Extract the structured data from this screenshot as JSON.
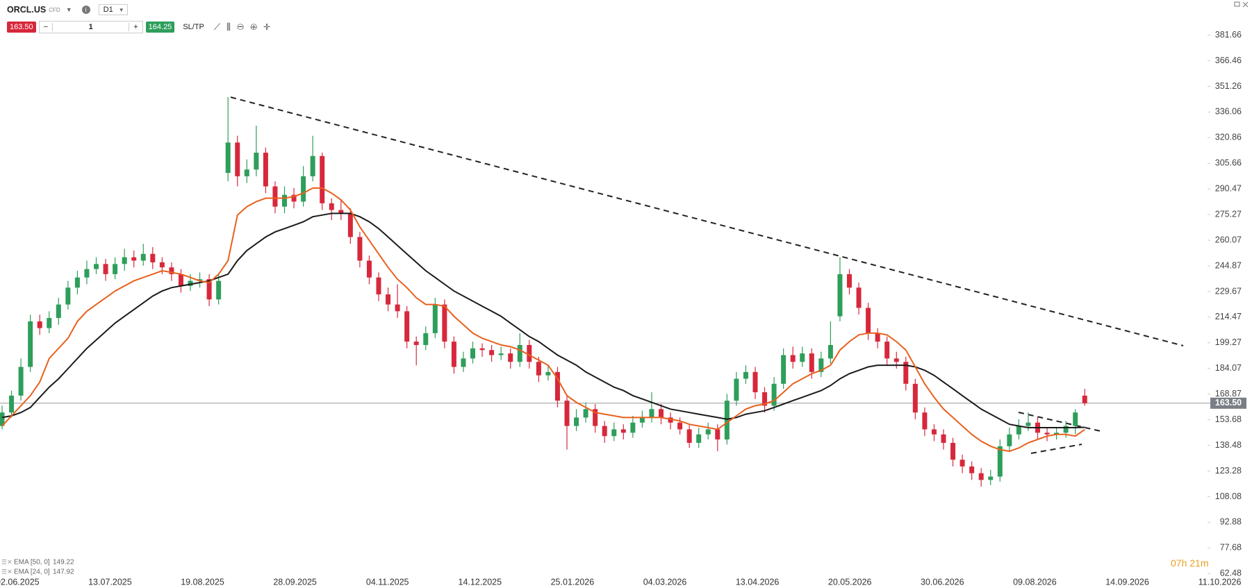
{
  "toolbar": {
    "symbol": "ORCL.US",
    "kind": "CFD",
    "timeframe": "D1",
    "sell_price": "163.50",
    "quantity": "1",
    "buy_price": "164.25",
    "sltp": "SL/TP"
  },
  "timer": "07h 21m",
  "chart_data": {
    "type": "candlestick",
    "up_color": "#2e9e5b",
    "down_color": "#d7283b",
    "ylim": [
      62.48,
      381.66
    ],
    "yticks": [
      381.66,
      366.46,
      351.26,
      336.06,
      320.86,
      305.66,
      290.47,
      275.27,
      260.07,
      244.87,
      229.67,
      214.47,
      199.27,
      184.07,
      168.87,
      153.68,
      138.48,
      123.28,
      108.08,
      92.88,
      77.68,
      62.48
    ],
    "grid": false,
    "x_labels": [
      "02.06.2025",
      "13.07.2025",
      "19.08.2025",
      "28.09.2025",
      "04.11.2025",
      "14.12.2025",
      "25.01.2026",
      "04.03.2026",
      "13.04.2026",
      "20.05.2026",
      "30.06.2026",
      "09.08.2026",
      "14.09.2026",
      "11.10.2026"
    ],
    "last_price": {
      "value": 163.5,
      "label": "163.50"
    },
    "ohlc": [
      [
        150,
        162,
        148,
        158
      ],
      [
        158,
        171,
        155,
        168
      ],
      [
        168,
        190,
        165,
        185
      ],
      [
        185,
        216,
        182,
        212
      ],
      [
        212,
        216,
        204,
        208
      ],
      [
        208,
        218,
        205,
        214
      ],
      [
        214,
        226,
        210,
        222
      ],
      [
        222,
        236,
        219,
        232
      ],
      [
        232,
        242,
        228,
        238
      ],
      [
        238,
        248,
        234,
        243
      ],
      [
        243,
        250,
        240,
        246
      ],
      [
        246,
        249,
        236,
        240
      ],
      [
        240,
        250,
        237,
        246
      ],
      [
        246,
        255,
        242,
        250
      ],
      [
        250,
        254,
        244,
        248
      ],
      [
        248,
        258,
        245,
        252
      ],
      [
        252,
        256,
        243,
        247
      ],
      [
        247,
        250,
        240,
        244
      ],
      [
        244,
        247,
        236,
        240
      ],
      [
        240,
        243,
        229,
        233
      ],
      [
        233,
        240,
        230,
        236
      ],
      [
        236,
        241,
        232,
        237
      ],
      [
        237,
        240,
        221,
        225
      ],
      [
        225,
        240,
        222,
        236
      ],
      [
        300,
        345,
        295,
        318
      ],
      [
        318,
        322,
        292,
        298
      ],
      [
        298,
        308,
        294,
        302
      ],
      [
        302,
        328,
        298,
        312
      ],
      [
        312,
        315,
        288,
        292
      ],
      [
        292,
        295,
        276,
        280
      ],
      [
        280,
        292,
        276,
        287
      ],
      [
        287,
        291,
        279,
        283
      ],
      [
        283,
        304,
        280,
        298
      ],
      [
        298,
        322,
        295,
        310
      ],
      [
        310,
        312,
        278,
        282
      ],
      [
        282,
        285,
        272,
        278
      ],
      [
        278,
        284,
        272,
        276
      ],
      [
        276,
        279,
        258,
        262
      ],
      [
        262,
        265,
        244,
        248
      ],
      [
        248,
        251,
        234,
        238
      ],
      [
        238,
        241,
        224,
        228
      ],
      [
        228,
        232,
        218,
        222
      ],
      [
        222,
        234,
        214,
        218
      ],
      [
        218,
        221,
        196,
        200
      ],
      [
        200,
        203,
        186,
        198
      ],
      [
        198,
        209,
        195,
        205
      ],
      [
        205,
        226,
        202,
        222
      ],
      [
        222,
        225,
        196,
        200
      ],
      [
        200,
        203,
        181,
        185
      ],
      [
        185,
        194,
        182,
        190
      ],
      [
        190,
        200,
        187,
        196
      ],
      [
        196,
        199,
        191,
        195
      ],
      [
        195,
        198,
        188,
        192
      ],
      [
        192,
        197,
        189,
        193
      ],
      [
        193,
        196,
        184,
        188
      ],
      [
        188,
        205,
        185,
        198
      ],
      [
        198,
        201,
        184,
        188
      ],
      [
        188,
        191,
        176,
        180
      ],
      [
        180,
        186,
        177,
        182
      ],
      [
        182,
        185,
        161,
        165
      ],
      [
        165,
        168,
        136,
        150
      ],
      [
        150,
        160,
        147,
        155
      ],
      [
        155,
        164,
        152,
        160
      ],
      [
        160,
        163,
        146,
        150
      ],
      [
        150,
        153,
        140,
        144
      ],
      [
        144,
        152,
        141,
        148
      ],
      [
        148,
        151,
        142,
        146
      ],
      [
        146,
        156,
        143,
        152
      ],
      [
        152,
        159,
        149,
        155
      ],
      [
        155,
        170,
        152,
        160
      ],
      [
        160,
        163,
        151,
        155
      ],
      [
        155,
        158,
        148,
        152
      ],
      [
        152,
        155,
        145,
        148
      ],
      [
        148,
        151,
        137,
        140
      ],
      [
        140,
        149,
        137,
        145
      ],
      [
        145,
        152,
        142,
        148
      ],
      [
        148,
        151,
        135,
        142
      ],
      [
        142,
        169,
        139,
        165
      ],
      [
        165,
        182,
        162,
        178
      ],
      [
        178,
        186,
        175,
        182
      ],
      [
        182,
        185,
        166,
        170
      ],
      [
        170,
        173,
        158,
        162
      ],
      [
        162,
        179,
        159,
        175
      ],
      [
        175,
        196,
        172,
        192
      ],
      [
        192,
        197,
        184,
        188
      ],
      [
        188,
        197,
        185,
        193
      ],
      [
        193,
        196,
        178,
        182
      ],
      [
        182,
        194,
        179,
        190
      ],
      [
        190,
        212,
        187,
        198
      ],
      [
        215,
        250,
        212,
        240
      ],
      [
        240,
        243,
        228,
        232
      ],
      [
        232,
        235,
        216,
        220
      ],
      [
        220,
        223,
        201,
        205
      ],
      [
        205,
        208,
        196,
        200
      ],
      [
        200,
        203,
        186,
        190
      ],
      [
        190,
        194,
        184,
        188
      ],
      [
        188,
        191,
        171,
        175
      ],
      [
        175,
        178,
        154,
        158
      ],
      [
        158,
        161,
        144,
        148
      ],
      [
        148,
        151,
        141,
        145
      ],
      [
        145,
        148,
        136,
        140
      ],
      [
        140,
        143,
        126,
        130
      ],
      [
        130,
        133,
        122,
        126
      ],
      [
        126,
        129,
        118,
        122
      ],
      [
        122,
        125,
        114,
        118
      ],
      [
        118,
        124,
        115,
        120
      ],
      [
        120,
        142,
        117,
        138
      ],
      [
        138,
        149,
        135,
        145
      ],
      [
        145,
        154,
        142,
        150
      ],
      [
        150,
        158,
        147,
        152
      ],
      [
        152,
        155,
        142,
        146
      ],
      [
        146,
        149,
        141,
        145
      ],
      [
        145,
        149,
        142,
        146
      ],
      [
        146,
        153,
        143,
        150
      ],
      [
        150,
        160,
        145,
        158
      ],
      [
        168,
        172,
        162,
        163.5
      ]
    ],
    "series": [
      {
        "name": "EMA [50, 0]",
        "color": "#1a1a1a",
        "values": [
          155,
          156,
          158,
          161,
          167,
          173,
          178,
          184,
          190,
          196,
          201,
          206,
          211,
          215,
          219,
          223,
          227,
          230,
          232,
          233,
          234,
          235,
          236,
          238,
          240,
          248,
          254,
          258,
          262,
          265,
          267,
          269,
          271,
          274,
          275,
          276,
          276,
          276,
          274,
          271,
          267,
          262,
          257,
          252,
          247,
          242,
          238,
          234,
          230,
          227,
          224,
          221,
          218,
          215,
          211,
          207,
          203,
          200,
          196,
          192,
          189,
          186,
          182,
          179,
          176,
          173,
          171,
          168,
          166,
          164,
          162,
          160,
          159,
          158,
          157,
          156,
          155,
          154,
          155,
          157,
          158,
          159,
          161,
          163,
          165,
          167,
          169,
          171,
          174,
          178,
          181,
          183,
          185,
          186,
          186,
          186,
          186,
          185,
          183,
          180,
          176,
          172,
          168,
          164,
          160,
          157,
          154,
          151,
          150,
          149,
          149,
          149,
          149,
          149,
          149,
          149.22
        ]
      },
      {
        "name": "EMA [24, 0]",
        "color": "#e8601c",
        "values": [
          150,
          156,
          162,
          168,
          176,
          190,
          196,
          202,
          212,
          218,
          222,
          226,
          230,
          233,
          236,
          238,
          240,
          242,
          241,
          240,
          238,
          236,
          235,
          240,
          248,
          275,
          280,
          283,
          285,
          285,
          285,
          286,
          288,
          291,
          291,
          288,
          284,
          278,
          268,
          260,
          252,
          244,
          237,
          232,
          226,
          222,
          222,
          221,
          215,
          210,
          205,
          202,
          200,
          198,
          197,
          195,
          192,
          189,
          186,
          178,
          168,
          164,
          161,
          158,
          157,
          156,
          155,
          155,
          155,
          155,
          155,
          154,
          153,
          151,
          150,
          149,
          148,
          152,
          156,
          160,
          162,
          163,
          165,
          170,
          175,
          178,
          181,
          183,
          186,
          195,
          200,
          204,
          205,
          205,
          204,
          200,
          195,
          185,
          175,
          167,
          160,
          155,
          150,
          145,
          141,
          138,
          136,
          135,
          137,
          140,
          142,
          144,
          145,
          145,
          144,
          147.92
        ]
      }
    ]
  }
}
